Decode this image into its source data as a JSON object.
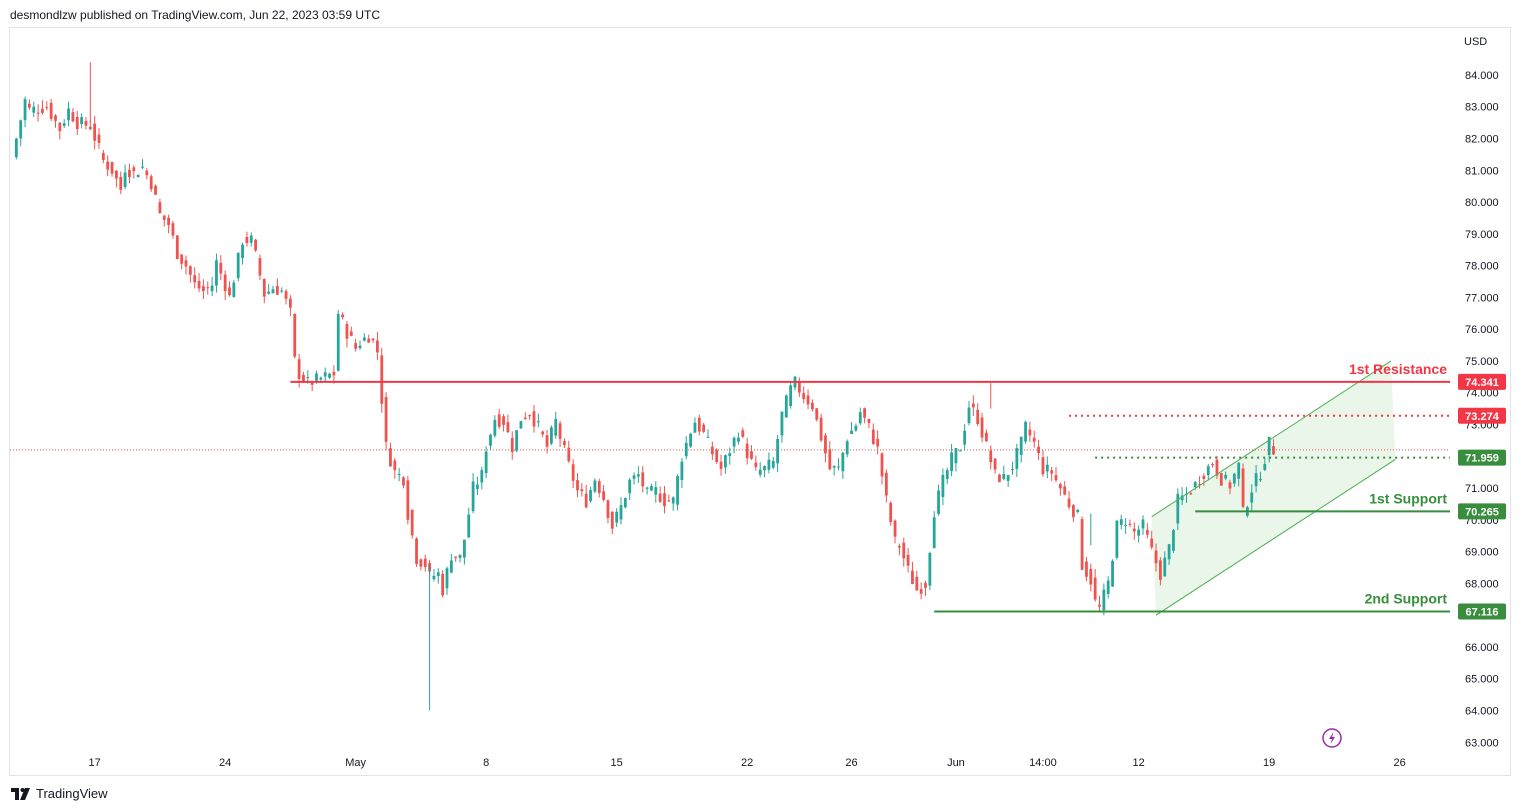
{
  "header": {
    "text": "desmondlzw published on TradingView.com, Jun 22, 2023 03:59 UTC"
  },
  "footer": {
    "brand": "TradingView"
  },
  "colors": {
    "up": "#26a69a",
    "down": "#ef5350",
    "resistance": "#f23645",
    "support": "#388e3c",
    "channel_fill": "#e6f4e6",
    "channel_line": "#4caf50",
    "lightning": "#9c27b0"
  },
  "icons": {
    "lightning": "lightning-icon",
    "logo": "tradingview-logo-icon"
  },
  "chart_data": {
    "type": "candlestick",
    "currency": "USD",
    "y_ticks": [
      "84.000",
      "83.000",
      "82.000",
      "81.000",
      "80.000",
      "79.000",
      "78.000",
      "77.000",
      "76.000",
      "75.000",
      "74.000",
      "73.000",
      "72.000",
      "71.000",
      "70.000",
      "69.000",
      "68.000",
      "67.000",
      "66.000",
      "65.000",
      "64.000",
      "63.000"
    ],
    "ylim": [
      62.6,
      85.1
    ],
    "x_ticks": [
      {
        "label": "17",
        "bar": 19
      },
      {
        "label": "24",
        "bar": 49
      },
      {
        "label": "May",
        "bar": 79
      },
      {
        "label": "8",
        "bar": 109
      },
      {
        "label": "15",
        "bar": 139
      },
      {
        "label": "22",
        "bar": 169
      },
      {
        "label": "26",
        "bar": 193
      },
      {
        "label": "Jun",
        "bar": 217
      },
      {
        "label": "14:00",
        "bar": 237
      },
      {
        "label": "12",
        "bar": 259
      },
      {
        "label": "19",
        "bar": 289
      },
      {
        "label": "26",
        "bar": 319
      }
    ],
    "levels": [
      {
        "name": "1st Resistance",
        "label": "1st Resistance",
        "value": 74.341,
        "value_label": "74.341",
        "color": "#f23645",
        "style": "solid",
        "start_bar": 64
      },
      {
        "name": "Resistance dotted",
        "label": "",
        "value": 73.274,
        "value_label": "73.274",
        "color": "#f23645",
        "style": "dotted",
        "start_bar": 243
      },
      {
        "name": "Support dotted",
        "label": "",
        "value": 71.959,
        "value_label": "71.959",
        "color": "#388e3c",
        "style": "dotted",
        "start_bar": 249
      },
      {
        "name": "1st Support",
        "label": "1st Support",
        "value": 70.265,
        "value_label": "70.265",
        "color": "#388e3c",
        "style": "solid",
        "start_bar": 272
      },
      {
        "name": "2nd Support",
        "label": "2nd Support",
        "value": 67.116,
        "value_label": "67.116",
        "color": "#388e3c",
        "style": "solid",
        "start_bar": 212
      }
    ],
    "last_price": 72.2,
    "channel": {
      "upper": [
        {
          "bar": 262,
          "value": 70.1
        },
        {
          "bar": 317,
          "value": 75.0
        }
      ],
      "lower": [
        {
          "bar": 263,
          "value": 67.0
        },
        {
          "bar": 318,
          "value": 71.9
        }
      ]
    },
    "anchors": [
      [
        0,
        81.4
      ],
      [
        3,
        83.2
      ],
      [
        4,
        82.9
      ],
      [
        8,
        83.0
      ],
      [
        11,
        82.3
      ],
      [
        13,
        82.9
      ],
      [
        15,
        82.5
      ],
      [
        18,
        82.4
      ],
      [
        21,
        81.3
      ],
      [
        23,
        81.0
      ],
      [
        25,
        80.4
      ],
      [
        26,
        81.1
      ],
      [
        28,
        80.9
      ],
      [
        30,
        81.1
      ],
      [
        32,
        80.6
      ],
      [
        34,
        79.6
      ],
      [
        36,
        79.3
      ],
      [
        38,
        78.4
      ],
      [
        40,
        78.0
      ],
      [
        42,
        77.4
      ],
      [
        44,
        77.2
      ],
      [
        46,
        77.4
      ],
      [
        47,
        78.1
      ],
      [
        49,
        77.4
      ],
      [
        50,
        77.0
      ],
      [
        52,
        78.2
      ],
      [
        53,
        78.8
      ],
      [
        55,
        78.8
      ],
      [
        56,
        78.3
      ],
      [
        58,
        77.1
      ],
      [
        60,
        77.3
      ],
      [
        62,
        77.2
      ],
      [
        64,
        76.5
      ],
      [
        65,
        75.0
      ],
      [
        66,
        74.6
      ],
      [
        68,
        74.3
      ],
      [
        70,
        74.4
      ],
      [
        72,
        74.5
      ],
      [
        74,
        74.6
      ],
      [
        75,
        76.5
      ],
      [
        77,
        75.9
      ],
      [
        79,
        75.4
      ],
      [
        80,
        75.6
      ],
      [
        82,
        75.8
      ],
      [
        83,
        75.6
      ],
      [
        84,
        75.3
      ],
      [
        86,
        72.3
      ],
      [
        88,
        71.5
      ],
      [
        90,
        71.3
      ],
      [
        91,
        70.2
      ],
      [
        93,
        68.8
      ],
      [
        95,
        68.6
      ],
      [
        96,
        68.2
      ],
      [
        98,
        68.3
      ],
      [
        99,
        67.8
      ],
      [
        101,
        68.9
      ],
      [
        103,
        68.8
      ],
      [
        104,
        69.4
      ],
      [
        106,
        71.0
      ],
      [
        108,
        71.4
      ],
      [
        109,
        72.3
      ],
      [
        111,
        73.2
      ],
      [
        113,
        73.1
      ],
      [
        115,
        72.3
      ],
      [
        117,
        73.2
      ],
      [
        119,
        73.4
      ],
      [
        121,
        72.9
      ],
      [
        123,
        72.3
      ],
      [
        125,
        73.1
      ],
      [
        126,
        72.6
      ],
      [
        128,
        71.7
      ],
      [
        130,
        70.9
      ],
      [
        132,
        70.6
      ],
      [
        134,
        71.3
      ],
      [
        136,
        70.7
      ],
      [
        138,
        69.8
      ],
      [
        140,
        70.4
      ],
      [
        142,
        71.2
      ],
      [
        144,
        71.4
      ],
      [
        146,
        70.8
      ],
      [
        148,
        70.9
      ],
      [
        150,
        70.6
      ],
      [
        152,
        70.6
      ],
      [
        154,
        72.0
      ],
      [
        156,
        72.8
      ],
      [
        157,
        73.1
      ],
      [
        159,
        72.7
      ],
      [
        161,
        72.1
      ],
      [
        163,
        71.6
      ],
      [
        165,
        72.2
      ],
      [
        167,
        72.8
      ],
      [
        169,
        72.1
      ],
      [
        171,
        71.5
      ],
      [
        173,
        71.6
      ],
      [
        175,
        71.8
      ],
      [
        177,
        73.3
      ],
      [
        179,
        74.1
      ],
      [
        180,
        74.3
      ],
      [
        182,
        73.9
      ],
      [
        184,
        73.6
      ],
      [
        186,
        72.6
      ],
      [
        188,
        71.6
      ],
      [
        190,
        71.6
      ],
      [
        192,
        72.6
      ],
      [
        194,
        73.0
      ],
      [
        195,
        73.4
      ],
      [
        197,
        72.9
      ],
      [
        199,
        72.2
      ],
      [
        201,
        70.6
      ],
      [
        203,
        69.3
      ],
      [
        204,
        69.2
      ],
      [
        206,
        68.4
      ],
      [
        208,
        67.8
      ],
      [
        210,
        68.0
      ],
      [
        212,
        70.3
      ],
      [
        214,
        71.2
      ],
      [
        216,
        71.9
      ],
      [
        218,
        72.3
      ],
      [
        220,
        73.6
      ],
      [
        222,
        73.2
      ],
      [
        224,
        72.3
      ],
      [
        226,
        71.4
      ],
      [
        228,
        71.3
      ],
      [
        230,
        71.7
      ],
      [
        232,
        72.4
      ],
      [
        233,
        72.9
      ],
      [
        235,
        72.4
      ],
      [
        237,
        71.6
      ],
      [
        239,
        71.5
      ],
      [
        241,
        71.0
      ],
      [
        243,
        70.5
      ],
      [
        245,
        70.1
      ],
      [
        246,
        68.6
      ],
      [
        248,
        68.1
      ],
      [
        249,
        67.4
      ],
      [
        250,
        67.2
      ],
      [
        252,
        68.0
      ],
      [
        254,
        69.8
      ],
      [
        256,
        70.0
      ],
      [
        258,
        69.6
      ],
      [
        260,
        69.8
      ],
      [
        262,
        69.0
      ],
      [
        264,
        68.3
      ],
      [
        266,
        69.1
      ],
      [
        268,
        70.6
      ],
      [
        270,
        70.8
      ],
      [
        272,
        71.1
      ],
      [
        274,
        71.5
      ],
      [
        276,
        71.8
      ],
      [
        278,
        71.3
      ],
      [
        280,
        71.1
      ],
      [
        282,
        71.7
      ],
      [
        283,
        70.2
      ],
      [
        285,
        71.0
      ],
      [
        287,
        71.5
      ],
      [
        289,
        72.4
      ],
      [
        290,
        72.2
      ]
    ]
  }
}
